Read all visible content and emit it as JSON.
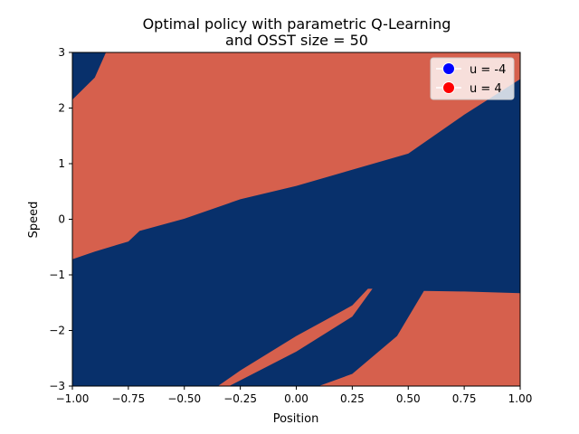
{
  "chart_data": {
    "type": "heatmap",
    "title_lines": [
      "Optimal policy with parametric Q-Learning",
      "and OSST size = 50"
    ],
    "xlabel": "Position",
    "ylabel": "Speed",
    "xlim": [
      -1.0,
      1.0
    ],
    "ylim": [
      -3.0,
      3.0
    ],
    "xticks": [
      -1.0,
      -0.75,
      -0.5,
      -0.25,
      0.0,
      0.25,
      0.5,
      0.75,
      1.0
    ],
    "xtick_labels": [
      "−1.00",
      "−0.75",
      "−0.50",
      "−0.25",
      "0.00",
      "0.25",
      "0.50",
      "0.75",
      "1.00"
    ],
    "yticks": [
      -3,
      -2,
      -1,
      0,
      1,
      2,
      3
    ],
    "ytick_labels": [
      "−3",
      "−2",
      "−1",
      "0",
      "1",
      "2",
      "3"
    ],
    "grid": false,
    "legend_position": "top-right",
    "legend": [
      {
        "label": "u = -4",
        "marker_color": "#0000ff"
      },
      {
        "label": "u = 4",
        "marker_color": "#ff0000"
      }
    ],
    "colors": {
      "u_minus_4_region": "#08306b",
      "u_4_region": "#d6604d"
    },
    "background_action": "u = -4",
    "regions_u4": [
      {
        "name": "upper-left region",
        "polygon": [
          [
            -1.0,
            -0.72
          ],
          [
            -0.9,
            -0.58
          ],
          [
            -0.75,
            -0.4
          ],
          [
            -0.7,
            -0.21
          ],
          [
            -0.5,
            0.01
          ],
          [
            -0.25,
            0.36
          ],
          [
            0.0,
            0.6
          ],
          [
            0.5,
            1.18
          ],
          [
            0.75,
            1.88
          ],
          [
            1.0,
            2.52
          ],
          [
            1.0,
            3.0
          ],
          [
            -0.85,
            3.0
          ],
          [
            -0.9,
            2.55
          ],
          [
            -1.0,
            2.15
          ]
        ]
      },
      {
        "name": "thin diagonal stripe",
        "polygon": [
          [
            -0.35,
            -3.0
          ],
          [
            -0.3,
            -3.0
          ],
          [
            0.0,
            -2.38
          ],
          [
            0.25,
            -1.75
          ],
          [
            0.34,
            -1.25
          ],
          [
            0.32,
            -1.25
          ],
          [
            0.25,
            -1.55
          ],
          [
            0.0,
            -2.1
          ],
          [
            -0.25,
            -2.72
          ]
        ]
      },
      {
        "name": "lower-right region",
        "polygon": [
          [
            0.1,
            -3.0
          ],
          [
            0.25,
            -2.78
          ],
          [
            0.45,
            -2.1
          ],
          [
            0.57,
            -1.29
          ],
          [
            0.75,
            -1.3
          ],
          [
            1.0,
            -1.33
          ],
          [
            1.0,
            -3.0
          ]
        ]
      }
    ]
  }
}
